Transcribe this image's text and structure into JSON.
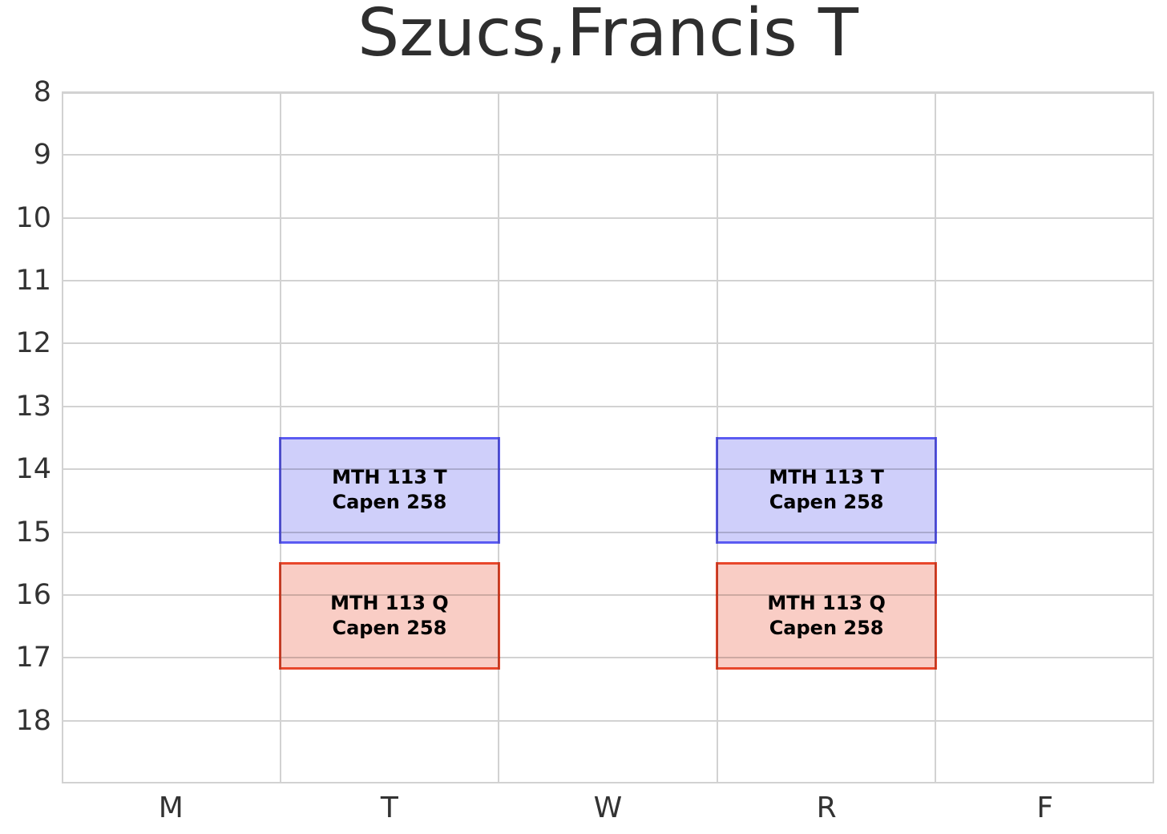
{
  "title": "Szucs,Francis T",
  "chart_data": {
    "type": "bar",
    "subtype": "weekly-course-schedule",
    "title": "Szucs,Francis T",
    "x_categories": [
      "M",
      "T",
      "W",
      "R",
      "F"
    ],
    "y_ticks": [
      "8",
      "9",
      "10",
      "11",
      "12",
      "13",
      "14",
      "15",
      "16",
      "17",
      "18"
    ],
    "y_min": 8,
    "y_max": 19,
    "y_inverted": true,
    "grid": true,
    "gridline_color": "#d2d2d2",
    "axis_text_color": "#333333",
    "events": [
      {
        "day": "T",
        "start_hour": 13.5,
        "end_hour": 15.17,
        "course": "MTH 113 T",
        "room": "Capen 258",
        "fill_color": "#cfcffa",
        "border_color": "#5b5bf2"
      },
      {
        "day": "R",
        "start_hour": 13.5,
        "end_hour": 15.17,
        "course": "MTH 113 T",
        "room": "Capen 258",
        "fill_color": "#cfcffa",
        "border_color": "#5b5bf2"
      },
      {
        "day": "T",
        "start_hour": 15.5,
        "end_hour": 17.17,
        "course": "MTH 113 Q",
        "room": "Capen 258",
        "fill_color": "#f9cdc5",
        "border_color": "#e8472b"
      },
      {
        "day": "R",
        "start_hour": 15.5,
        "end_hour": 17.17,
        "course": "MTH 113 Q",
        "room": "Capen 258",
        "fill_color": "#f9cdc5",
        "border_color": "#e8472b"
      }
    ]
  }
}
